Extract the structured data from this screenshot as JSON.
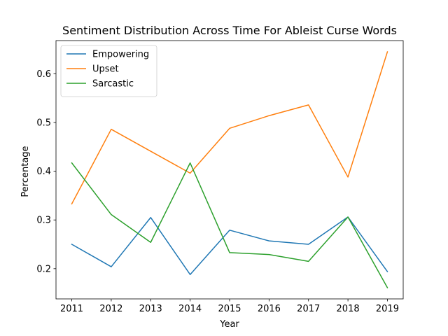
{
  "chart_data": {
    "type": "line",
    "title": "Sentiment Distribution Across Time For Ableist Curse Words",
    "xlabel": "Year",
    "ylabel": "Percentage",
    "x": [
      2011,
      2012,
      2013,
      2014,
      2015,
      2016,
      2017,
      2018,
      2019
    ],
    "x_tick_labels": [
      "2011",
      "2012",
      "2013",
      "2014",
      "2015",
      "2016",
      "2017",
      "2018",
      "2019"
    ],
    "xlim": [
      2010.6,
      2019.4
    ],
    "ylim": [
      0.138,
      0.668
    ],
    "y_ticks": [
      0.2,
      0.3,
      0.4,
      0.5,
      0.6
    ],
    "y_tick_labels": [
      "0.2",
      "0.3",
      "0.4",
      "0.5",
      "0.6"
    ],
    "grid": false,
    "legend_position": "top-left",
    "series": [
      {
        "name": "Empowering",
        "color": "#1f77b4",
        "values": [
          0.25,
          0.204,
          0.305,
          0.188,
          0.279,
          0.257,
          0.25,
          0.306,
          0.194
        ]
      },
      {
        "name": "Upset",
        "color": "#ff7f0e",
        "values": [
          0.333,
          0.486,
          0.441,
          0.396,
          0.488,
          0.514,
          0.536,
          0.388,
          0.645
        ]
      },
      {
        "name": "Sarcastic",
        "color": "#2ca02c",
        "values": [
          0.417,
          0.311,
          0.254,
          0.417,
          0.233,
          0.229,
          0.215,
          0.306,
          0.161
        ]
      }
    ]
  }
}
